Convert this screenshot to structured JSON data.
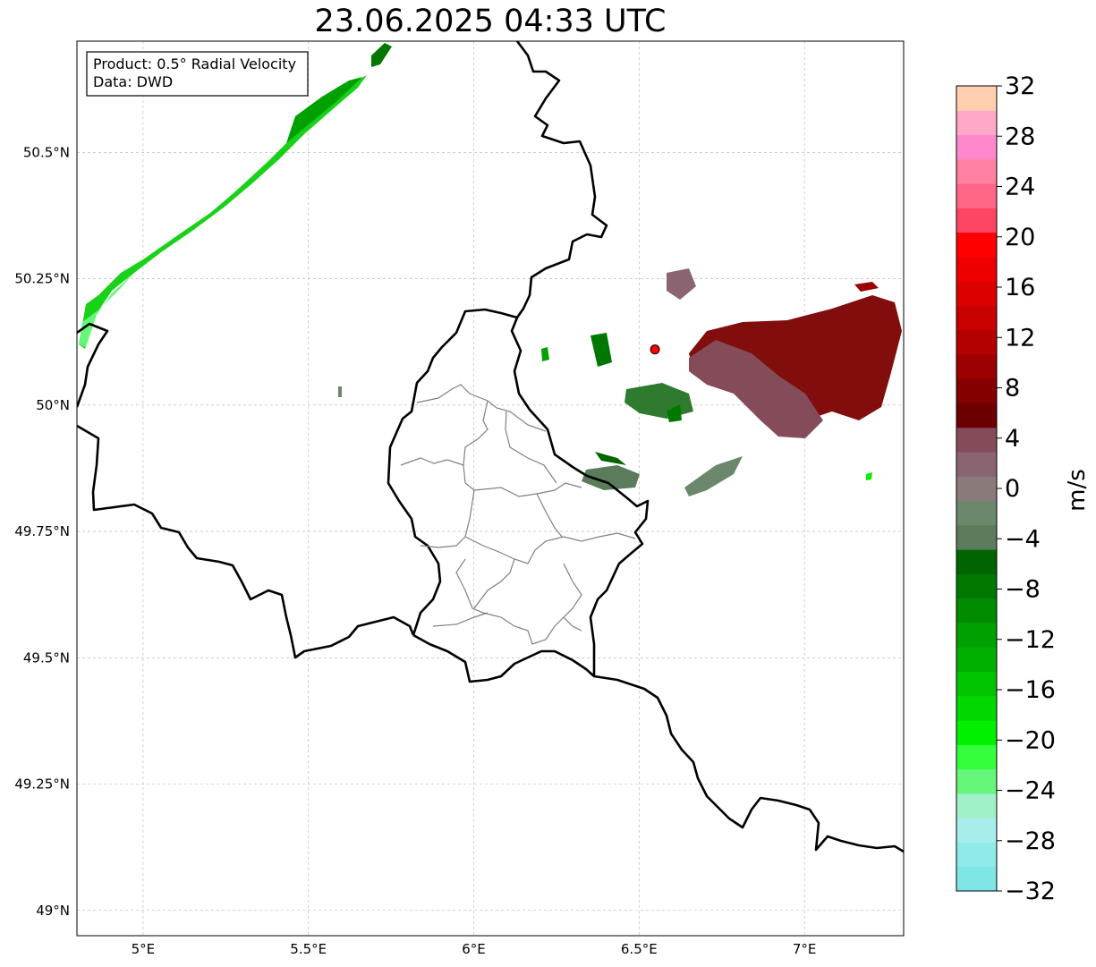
{
  "title": "23.06.2025 04:33 UTC",
  "info_box": {
    "line1": "Product: 0.5° Radial Velocity",
    "line2": "Data: DWD"
  },
  "map": {
    "lon_range": [
      4.8,
      7.3
    ],
    "lat_range": [
      48.95,
      50.72
    ],
    "lon_ticks": [
      {
        "value": 5.0,
        "label": "5°E"
      },
      {
        "value": 5.5,
        "label": "5.5°E"
      },
      {
        "value": 6.0,
        "label": "6°E"
      },
      {
        "value": 6.5,
        "label": "6.5°E"
      },
      {
        "value": 7.0,
        "label": "7°E"
      }
    ],
    "lat_ticks": [
      {
        "value": 49.0,
        "label": "49°N"
      },
      {
        "value": 49.25,
        "label": "49.25°N"
      },
      {
        "value": 49.5,
        "label": "49.5°N"
      },
      {
        "value": 49.75,
        "label": "49.75°N"
      },
      {
        "value": 50.0,
        "label": "50°N"
      },
      {
        "value": 50.25,
        "label": "50.25°N"
      },
      {
        "value": 50.5,
        "label": "50.5°N"
      }
    ],
    "grid": true,
    "radar_site": {
      "lon": 6.548,
      "lat": 50.11,
      "color": "#ff0000"
    }
  },
  "colorbar": {
    "label": "m/s",
    "min": -32,
    "max": 32,
    "ticks": [
      {
        "value": 32,
        "label": "32"
      },
      {
        "value": 28,
        "label": "28"
      },
      {
        "value": 24,
        "label": "24"
      },
      {
        "value": 20,
        "label": "20"
      },
      {
        "value": 16,
        "label": "16"
      },
      {
        "value": 12,
        "label": "12"
      },
      {
        "value": 8,
        "label": "8"
      },
      {
        "value": 4,
        "label": "4"
      },
      {
        "value": 0,
        "label": "0"
      },
      {
        "value": -4,
        "label": "−4"
      },
      {
        "value": -8,
        "label": "−8"
      },
      {
        "value": -12,
        "label": "−12"
      },
      {
        "value": -16,
        "label": "−16"
      },
      {
        "value": -20,
        "label": "−20"
      },
      {
        "value": -24,
        "label": "−24"
      },
      {
        "value": -28,
        "label": "−28"
      },
      {
        "value": -32,
        "label": "−32"
      }
    ],
    "colors": [
      "#7fe5e5",
      "#8feaea",
      "#a8ecec",
      "#a0f0c8",
      "#66f77a",
      "#33ff3c",
      "#00f000",
      "#00d800",
      "#00c400",
      "#00b000",
      "#00a000",
      "#008c00",
      "#007800",
      "#006400",
      "#5a7c5a",
      "#6c886c",
      "#8a7a7a",
      "#8a6470",
      "#844c58",
      "#6c0000",
      "#840000",
      "#9c0000",
      "#b40000",
      "#c80000",
      "#dc0000",
      "#ee0000",
      "#ff0000",
      "#ff4464",
      "#ff6688",
      "#ff80a0",
      "#ff88cc",
      "#ffa8c8",
      "#ffcfb0"
    ]
  }
}
